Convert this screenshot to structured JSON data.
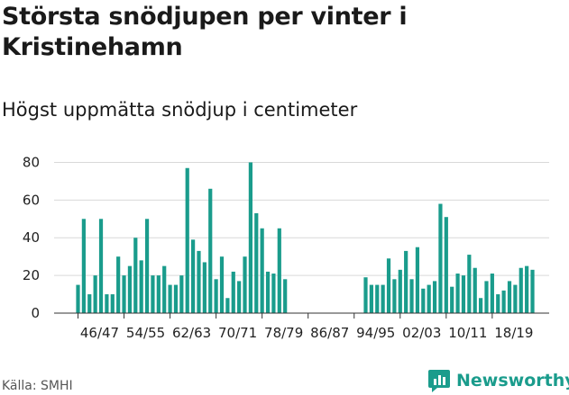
{
  "header": {
    "title": "Största snödjupen per vinter i Kristinehamn",
    "subtitle": "Högst uppmätta snödjup i centimeter"
  },
  "footer": {
    "source": "Källa: SMHI",
    "brand": "Newsworthy"
  },
  "colors": {
    "bar": "#1a9c8c",
    "grid": "#d9d9d9",
    "axis": "#333333",
    "brand": "#1a9c8c"
  },
  "chart_data": {
    "type": "bar",
    "title": "Största snödjupen per vinter i Kristinehamn",
    "subtitle": "Högst uppmätta snödjup i centimeter",
    "xlabel": "",
    "ylabel": "",
    "ylim": [
      0,
      85
    ],
    "yticks": [
      0,
      20,
      40,
      60,
      80
    ],
    "grid": true,
    "categories": [
      "46/47",
      "47/48",
      "48/49",
      "49/50",
      "50/51",
      "51/52",
      "52/53",
      "53/54",
      "54/55",
      "55/56",
      "56/57",
      "57/58",
      "58/59",
      "59/60",
      "60/61",
      "61/62",
      "62/63",
      "63/64",
      "64/65",
      "65/66",
      "66/67",
      "67/68",
      "68/69",
      "69/70",
      "70/71",
      "71/72",
      "72/73",
      "73/74",
      "74/75",
      "75/76",
      "76/77",
      "77/78",
      "78/79",
      "79/80",
      "80/81",
      "81/82",
      "82/83",
      "83/84",
      "84/85",
      "85/86",
      "86/87",
      "87/88",
      "88/89",
      "89/90",
      "90/91",
      "91/92",
      "92/93",
      "93/94",
      "94/95",
      "95/96",
      "96/97",
      "97/98",
      "98/99",
      "99/00",
      "00/01",
      "01/02",
      "02/03",
      "03/04",
      "04/05",
      "05/06",
      "06/07",
      "07/08",
      "08/09",
      "09/10",
      "10/11",
      "11/12",
      "12/13",
      "13/14",
      "14/15",
      "15/16",
      "16/17",
      "17/18",
      "18/19",
      "19/20",
      "20/21",
      "21/22",
      "22/23",
      "23/24",
      "24/25",
      "25/26"
    ],
    "tick_labels": [
      "46/47",
      "54/55",
      "62/63",
      "70/71",
      "78/79",
      "86/87",
      "94/95",
      "02/03",
      "10/11",
      "18/19"
    ],
    "values": [
      15,
      50,
      10,
      20,
      50,
      10,
      10,
      30,
      20,
      25,
      40,
      28,
      50,
      20,
      20,
      25,
      15,
      15,
      20,
      77,
      39,
      33,
      27,
      66,
      18,
      30,
      8,
      22,
      17,
      30,
      80,
      53,
      45,
      22,
      21,
      45,
      18,
      null,
      null,
      null,
      null,
      null,
      null,
      null,
      null,
      null,
      null,
      null,
      null,
      null,
      null,
      null,
      null,
      null,
      null,
      null,
      null,
      null,
      null,
      null,
      null,
      null,
      null,
      null,
      null,
      null,
      null,
      null,
      null,
      null,
      null,
      null,
      null,
      null,
      null,
      null,
      null,
      null,
      null,
      null
    ],
    "values_later": {
      "start_category": "96/97",
      "values": [
        19,
        15,
        15,
        15,
        29,
        18,
        23,
        33,
        18,
        35,
        13,
        15,
        17,
        58,
        51,
        14,
        21,
        20,
        31,
        24,
        8,
        17,
        21,
        10,
        12,
        17,
        15,
        24,
        25,
        23
      ]
    }
  }
}
